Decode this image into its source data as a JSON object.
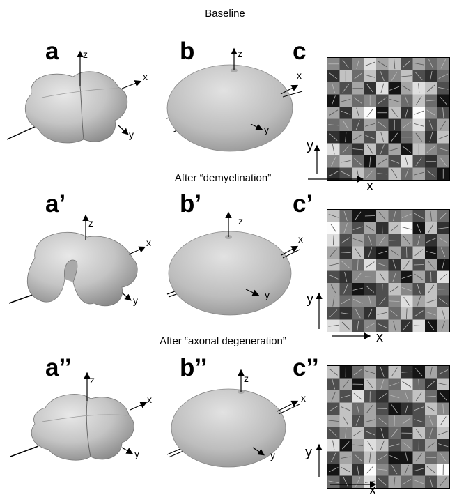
{
  "rows": [
    {
      "title": "Baseline",
      "labels": {
        "a": "a",
        "b": "b",
        "c": "c"
      },
      "shape": "four-lobe"
    },
    {
      "title": "After “demyelination”",
      "labels": {
        "a": "a’",
        "b": "b’",
        "c": "c’"
      },
      "shape": "bent-lobe"
    },
    {
      "title": "After “axonal degeneration”",
      "labels": {
        "a": "a’’",
        "b": "b’’",
        "c": "c’’"
      },
      "shape": "four-lobe-small"
    }
  ],
  "axes": {
    "x": "x",
    "y": "y",
    "z": "z"
  },
  "colors": {
    "surface_light": "#d6d6d6",
    "surface_dark": "#8c8c8c",
    "grid_border": "#000000"
  },
  "grid_gray_levels": [
    [
      4,
      2,
      4,
      7,
      5,
      6,
      2,
      5,
      3,
      4
    ],
    [
      1,
      6,
      3,
      6,
      2,
      4,
      6,
      2,
      1,
      3
    ],
    [
      4,
      2,
      5,
      1,
      7,
      0,
      5,
      7,
      6,
      2
    ],
    [
      0,
      5,
      3,
      4,
      2,
      5,
      3,
      6,
      3,
      0
    ],
    [
      5,
      1,
      6,
      8,
      0,
      6,
      1,
      8,
      4,
      2
    ],
    [
      3,
      4,
      2,
      5,
      3,
      1,
      4,
      7,
      2,
      5
    ],
    [
      1,
      0,
      5,
      2,
      6,
      0,
      3,
      5,
      1,
      6
    ],
    [
      7,
      3,
      1,
      6,
      2,
      5,
      0,
      6,
      4,
      3
    ],
    [
      4,
      6,
      3,
      0,
      5,
      2,
      7,
      2,
      1,
      4
    ],
    [
      1,
      2,
      6,
      4,
      2,
      6,
      3,
      5,
      2,
      0
    ]
  ]
}
